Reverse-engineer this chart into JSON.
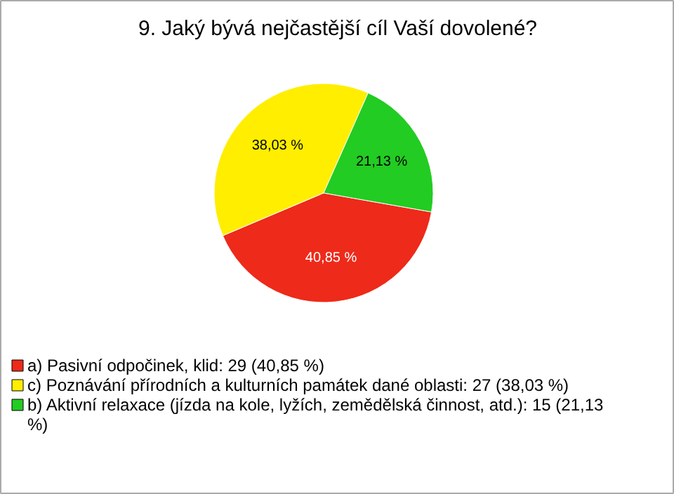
{
  "chart_data": {
    "type": "pie",
    "title": "9. Jaký bývá nejčastější cíl Vaší dovolené?",
    "categories": [
      "a) Pasivní odpočinek, klid: 29 (40,85 %)",
      "c) Poznávání přírodních a kulturních památek dané oblasti: 27 (38,03 %)",
      "b) Aktivní relaxace (jízda na kole, lyžích, zemědělská činnost, atd.): 15 (21,13 %)"
    ],
    "values": [
      40.85,
      38.03,
      21.13
    ],
    "value_labels": [
      "40,85 %",
      "38,03 %",
      "21,13 %"
    ],
    "colors": [
      "#ee2a1a",
      "#ffee00",
      "#22cc22"
    ],
    "legend": "bottom"
  }
}
